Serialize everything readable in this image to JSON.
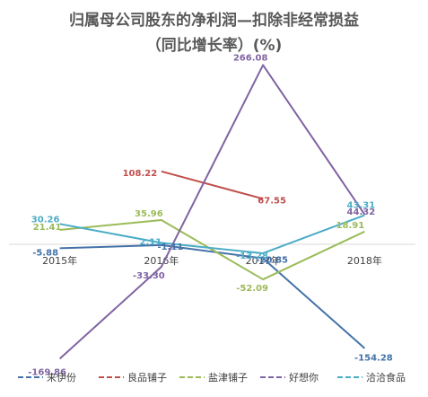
{
  "chart_data": {
    "type": "line",
    "title": "归属母公司股东的净利润—扣除非经常损益",
    "subtitle": "（同比增长率）(%)",
    "categories": [
      "2015年",
      "2016年",
      "2017年",
      "2018年"
    ],
    "ylim": [
      -200,
      300
    ],
    "grid": false,
    "legend_position": "bottom",
    "series": [
      {
        "name": "来伊份",
        "color": "#4472a8",
        "values": [
          -5.88,
          -1.11,
          -20.85,
          -154.28
        ],
        "labels": [
          "-5.88",
          "-1.11",
          "-20.85",
          "-154.28"
        ]
      },
      {
        "name": "良品铺子",
        "color": "#c0504d",
        "values": [
          null,
          108.22,
          67.55,
          null
        ],
        "labels": [
          "",
          "108.22",
          "67.55",
          ""
        ]
      },
      {
        "name": "盐津铺子",
        "color": "#9bbb59",
        "values": [
          21.41,
          35.96,
          -52.09,
          18.91
        ],
        "labels": [
          "21.41",
          "35.96",
          "-52.09",
          "18.91"
        ]
      },
      {
        "name": "好想你",
        "color": "#8064a2",
        "values": [
          -169.86,
          -33.3,
          266.08,
          44.32
        ],
        "labels": [
          "-169.86",
          "-33.30",
          "266.08",
          "44.32"
        ]
      },
      {
        "name": "洽洽食品",
        "color": "#4bacc6",
        "values": [
          30.26,
          2.11,
          -13.28,
          43.31
        ],
        "labels": [
          "30.26",
          "2.11",
          "-13.28",
          "43.31"
        ]
      }
    ]
  }
}
